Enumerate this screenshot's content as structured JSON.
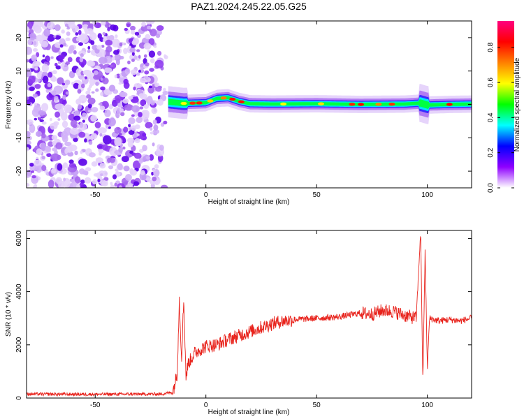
{
  "figure_title": "PAZ1.2024.245.22.05.G25",
  "chart_data": [
    {
      "type": "heatmap",
      "description_of_content": "spectrogram",
      "title": "PAZ1.2024.245.22.05.G25",
      "xlabel": "Height of straight line (km)",
      "ylabel": "Frequency (Hz)",
      "xlim": [
        -81,
        120
      ],
      "ylim": [
        -25,
        25
      ],
      "xticks": [
        -50,
        0,
        50,
        100
      ],
      "yticks": [
        20,
        10,
        0,
        -10,
        -20
      ],
      "xtick_labels": [
        "-50",
        "0",
        "50",
        "100"
      ],
      "ytick_labels": [
        "20",
        "10",
        "0",
        "-10",
        "-20"
      ],
      "colorbar": {
        "label": "Normalized spectral amplitude",
        "range": [
          0,
          0.95
        ],
        "ticks": [
          0.0,
          0.2,
          0.4,
          0.6,
          0.8
        ],
        "tick_labels": [
          "0.0",
          "0.2",
          "0.4",
          "0.6",
          "0.8"
        ],
        "colormap": [
          "#ffffff",
          "#8f00ff",
          "#0000ff",
          "#00ffff",
          "#00ff00",
          "#ffff00",
          "#ff8000",
          "#ff0000",
          "#ff0080"
        ]
      },
      "noise_region_x": [
        -81,
        -17
      ],
      "signal_track": [
        [
          -17,
          0.8
        ],
        [
          -10,
          0.3
        ],
        [
          0,
          0.5
        ],
        [
          5,
          1.8
        ],
        [
          10,
          2.0
        ],
        [
          15,
          0.9
        ],
        [
          20,
          0.2
        ],
        [
          30,
          0.1
        ],
        [
          50,
          0.2
        ],
        [
          70,
          0.0
        ],
        [
          90,
          0.1
        ],
        [
          97,
          0.4
        ],
        [
          100,
          -0.2
        ],
        [
          110,
          0.0
        ],
        [
          120,
          0.1
        ]
      ],
      "grid": false
    },
    {
      "type": "line",
      "xlabel": "Height of straight line (km)",
      "ylabel": "SNR (10 * v/v)",
      "xlim": [
        -81,
        120
      ],
      "ylim": [
        0,
        6300
      ],
      "xticks": [
        -50,
        0,
        50,
        100
      ],
      "yticks": [
        0,
        2000,
        4000,
        6000
      ],
      "xtick_labels": [
        "-50",
        "0",
        "50",
        "100"
      ],
      "ytick_labels": [
        "0",
        "2000",
        "4000",
        "6000"
      ],
      "series_color": "#e8231c",
      "x": [
        -81,
        -60,
        -40,
        -20,
        -15,
        -13,
        -12,
        -11,
        -10,
        -9,
        -8,
        -5,
        0,
        5,
        10,
        15,
        20,
        25,
        30,
        35,
        40,
        50,
        60,
        70,
        75,
        80,
        85,
        90,
        95,
        97,
        98,
        99,
        100,
        101,
        105,
        110,
        115,
        120
      ],
      "values": [
        150,
        140,
        145,
        150,
        220,
        900,
        3700,
        1500,
        3750,
        800,
        1300,
        1700,
        1950,
        2000,
        2200,
        2350,
        2500,
        2650,
        2800,
        2900,
        2950,
        3000,
        3050,
        3200,
        3150,
        3300,
        3250,
        3100,
        3000,
        6300,
        500,
        5600,
        1100,
        3000,
        2900,
        2950,
        2900,
        3000
      ],
      "grid": false
    }
  ]
}
